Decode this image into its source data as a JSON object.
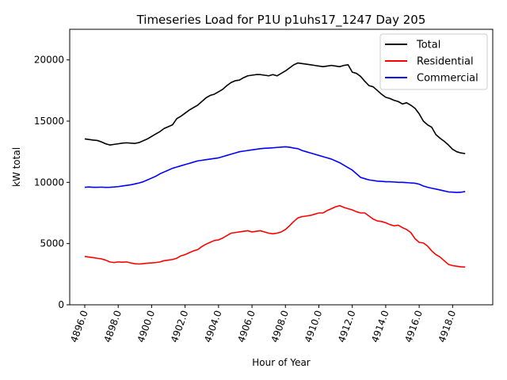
{
  "chart_data": {
    "type": "line",
    "title": "Timeseries Load for P1U p1uhs17_1247  Day 205",
    "xlabel": "Hour of Year",
    "ylabel": "kW total",
    "xlim": [
      4895.1,
      4920.4
    ],
    "ylim": [
      0,
      22500
    ],
    "xticks": [
      4896.0,
      4898.0,
      4900.0,
      4902.0,
      4904.0,
      4906.0,
      4908.0,
      4910.0,
      4912.0,
      4914.0,
      4916.0,
      4918.0
    ],
    "xtick_labels": [
      "4896.0",
      "4898.0",
      "4900.0",
      "4902.0",
      "4904.0",
      "4906.0",
      "4908.0",
      "4910.0",
      "4912.0",
      "4914.0",
      "4916.0",
      "4918.0"
    ],
    "yticks": [
      0,
      5000,
      10000,
      15000,
      20000
    ],
    "ytick_labels": [
      "0",
      "5000",
      "10000",
      "15000",
      "20000"
    ],
    "legend_position": "top-right",
    "x_start": 4896.0,
    "x_step": 0.25,
    "series": [
      {
        "name": "Total",
        "color": "#000000",
        "values": [
          13550,
          13500,
          13450,
          13420,
          13300,
          13150,
          13050,
          13100,
          13150,
          13200,
          13230,
          13200,
          13180,
          13250,
          13400,
          13550,
          13750,
          13950,
          14150,
          14400,
          14550,
          14700,
          15200,
          15400,
          15650,
          15900,
          16100,
          16300,
          16600,
          16900,
          17100,
          17200,
          17400,
          17600,
          17900,
          18150,
          18300,
          18350,
          18550,
          18700,
          18750,
          18800,
          18800,
          18750,
          18700,
          18800,
          18700,
          18900,
          19100,
          19350,
          19600,
          19750,
          19700,
          19650,
          19600,
          19550,
          19500,
          19450,
          19500,
          19550,
          19500,
          19450,
          19550,
          19600,
          19000,
          18900,
          18650,
          18250,
          17900,
          17800,
          17500,
          17200,
          16950,
          16850,
          16700,
          16600,
          16400,
          16500,
          16300,
          16050,
          15600,
          15000,
          14700,
          14500,
          13900,
          13600,
          13350,
          13050,
          12700,
          12500,
          12400,
          12350
        ]
      },
      {
        "name": "Residential",
        "color": "#ff0000",
        "values": [
          3950,
          3900,
          3850,
          3800,
          3750,
          3650,
          3500,
          3450,
          3500,
          3480,
          3500,
          3420,
          3350,
          3330,
          3360,
          3400,
          3420,
          3450,
          3500,
          3600,
          3650,
          3700,
          3800,
          4000,
          4100,
          4250,
          4400,
          4500,
          4750,
          4950,
          5100,
          5250,
          5300,
          5450,
          5650,
          5850,
          5900,
          5950,
          6000,
          6050,
          5950,
          6000,
          6050,
          5950,
          5850,
          5800,
          5850,
          5950,
          6150,
          6450,
          6800,
          7100,
          7200,
          7250,
          7300,
          7400,
          7500,
          7500,
          7700,
          7850,
          8000,
          8100,
          7950,
          7850,
          7750,
          7600,
          7500,
          7500,
          7250,
          7000,
          6850,
          6800,
          6700,
          6550,
          6450,
          6500,
          6300,
          6150,
          5900,
          5400,
          5100,
          5050,
          4800,
          4400,
          4100,
          3900,
          3600,
          3300,
          3200,
          3150,
          3100,
          3080
        ]
      },
      {
        "name": "Commercial",
        "color": "#0000ff",
        "values": [
          9600,
          9620,
          9600,
          9600,
          9610,
          9590,
          9600,
          9620,
          9650,
          9700,
          9750,
          9800,
          9870,
          9950,
          10050,
          10200,
          10350,
          10500,
          10700,
          10850,
          11000,
          11150,
          11250,
          11350,
          11450,
          11550,
          11650,
          11750,
          11800,
          11850,
          11900,
          11950,
          12000,
          12100,
          12200,
          12300,
          12400,
          12500,
          12550,
          12600,
          12650,
          12700,
          12750,
          12780,
          12800,
          12820,
          12850,
          12880,
          12900,
          12870,
          12800,
          12750,
          12600,
          12500,
          12400,
          12300,
          12200,
          12100,
          12000,
          11900,
          11750,
          11600,
          11400,
          11200,
          11000,
          10700,
          10400,
          10300,
          10200,
          10150,
          10100,
          10080,
          10050,
          10050,
          10030,
          10000,
          10000,
          9980,
          9950,
          9930,
          9850,
          9700,
          9600,
          9520,
          9450,
          9380,
          9300,
          9220,
          9200,
          9180,
          9190,
          9250
        ]
      }
    ]
  }
}
